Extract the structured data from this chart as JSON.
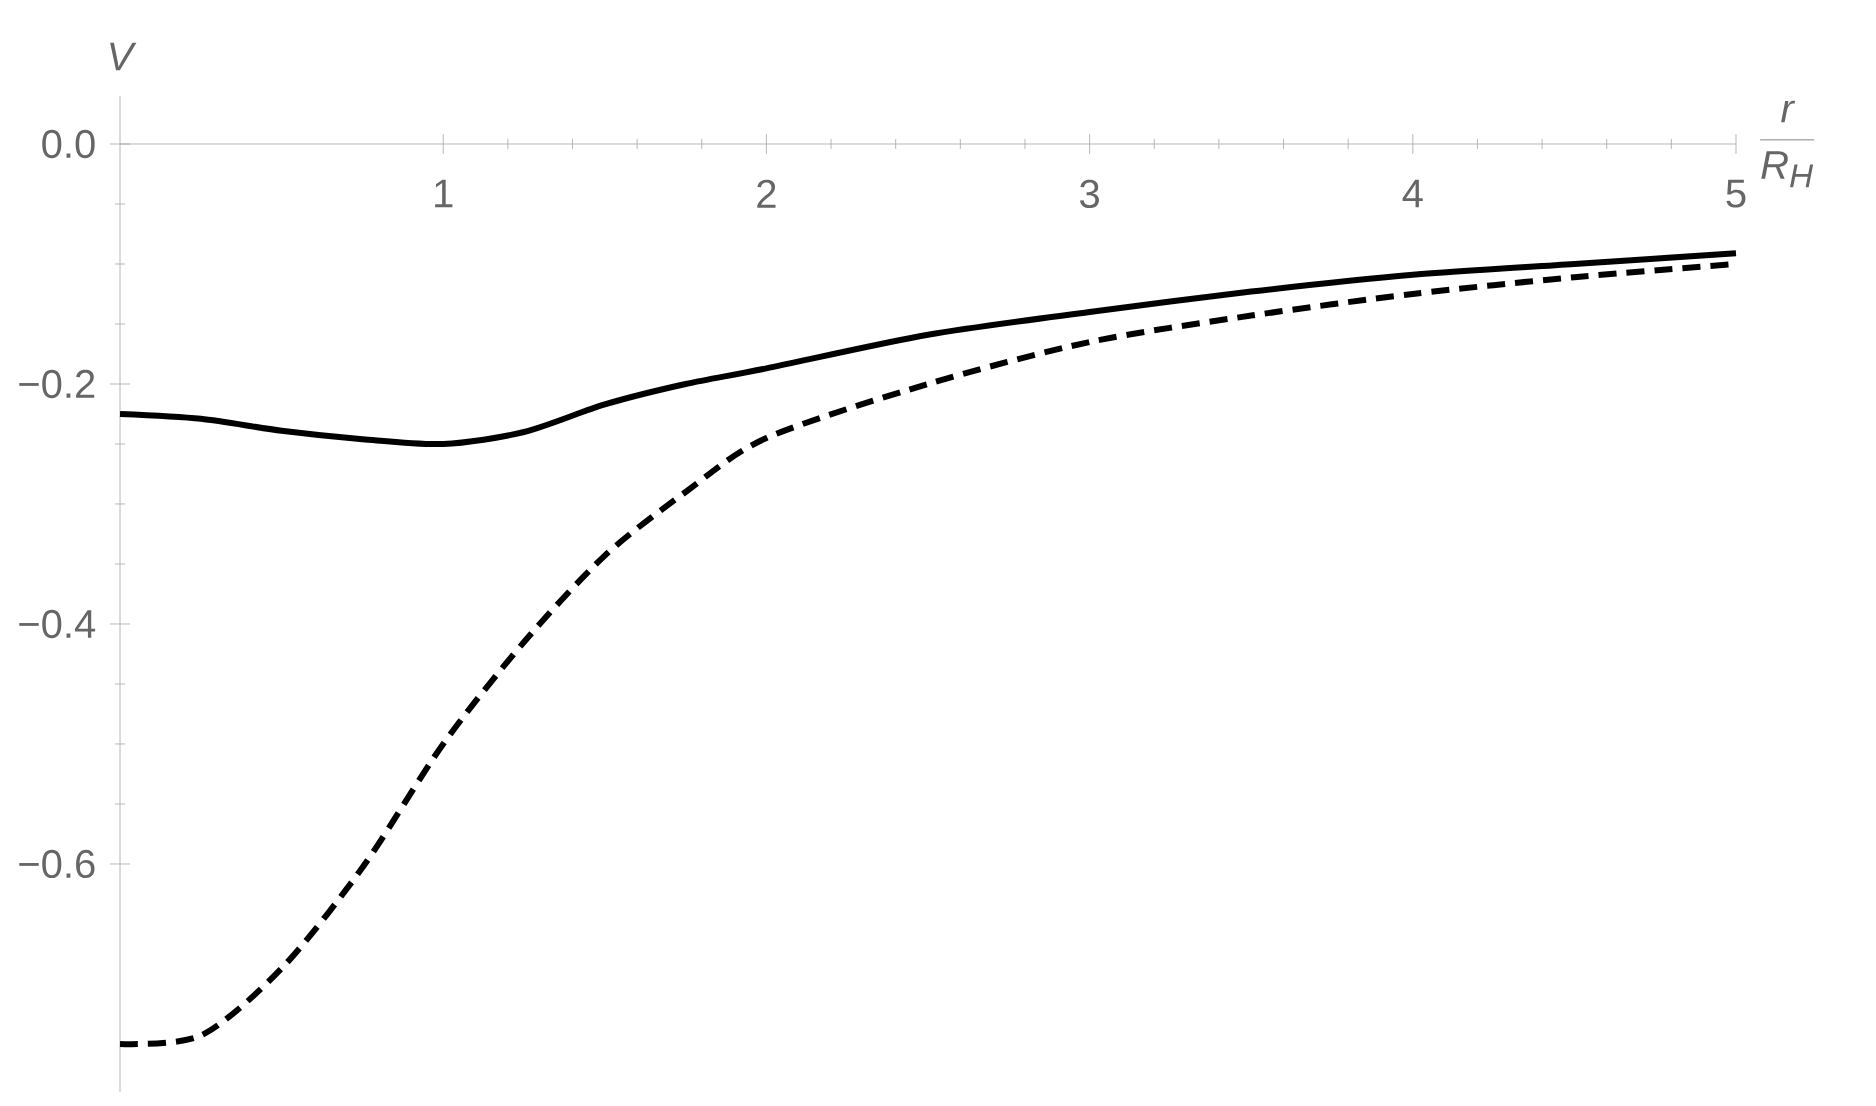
{
  "chart_data": {
    "type": "line",
    "xlabel": "\\frac{r}{R_H}",
    "ylabel": "V",
    "xlim": [
      0,
      5
    ],
    "ylim": [
      -0.79,
      0.04
    ],
    "xticks": [
      1,
      2,
      3,
      4,
      5
    ],
    "yticks": [
      {
        "value": 0,
        "label": "0.0"
      },
      {
        "value": -0.2,
        "label": "−0.2"
      },
      {
        "value": -0.4,
        "label": "−0.4"
      },
      {
        "value": -0.6,
        "label": "−0.6"
      }
    ],
    "x": [
      0,
      0.25,
      0.5,
      0.75,
      1,
      1.25,
      1.5,
      1.75,
      2,
      2.5,
      3,
      3.5,
      4,
      4.5,
      5
    ],
    "series": [
      {
        "color": "#000000",
        "line_style": "solid",
        "values": [
          -0.225,
          -0.229,
          -0.239,
          -0.246,
          -0.25,
          -0.24,
          -0.217,
          -0.2,
          -0.187,
          -0.159,
          -0.14,
          -0.123,
          -0.109,
          -0.1,
          -0.091
        ]
      },
      {
        "color": "#000000",
        "line_style": "dashed",
        "values": [
          -0.75,
          -0.743,
          -0.687,
          -0.603,
          -0.5,
          -0.415,
          -0.343,
          -0.29,
          -0.245,
          -0.2,
          -0.165,
          -0.143,
          -0.125,
          -0.111,
          -0.1
        ]
      }
    ]
  }
}
